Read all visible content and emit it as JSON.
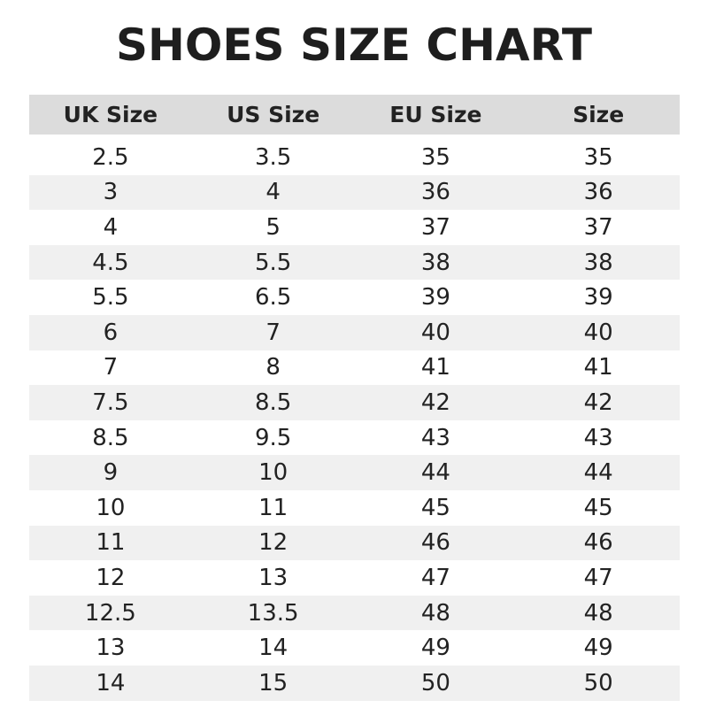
{
  "title": "SHOES SIZE CHART",
  "headers": [
    "UK Size",
    "US Size",
    "EU Size",
    "Size"
  ],
  "rows": [
    [
      "2.5",
      "3.5",
      "35",
      "35"
    ],
    [
      "3",
      "4",
      "36",
      "36"
    ],
    [
      "4",
      "5",
      "37",
      "37"
    ],
    [
      "4.5",
      "5.5",
      "38",
      "38"
    ],
    [
      "5.5",
      "6.5",
      "39",
      "39"
    ],
    [
      "6",
      "7",
      "40",
      "40"
    ],
    [
      "7",
      "8",
      "41",
      "41"
    ],
    [
      "7.5",
      "8.5",
      "42",
      "42"
    ],
    [
      "8.5",
      "9.5",
      "43",
      "43"
    ],
    [
      "9",
      "10",
      "44",
      "44"
    ],
    [
      "10",
      "11",
      "45",
      "45"
    ],
    [
      "11",
      "12",
      "46",
      "46"
    ],
    [
      "12",
      "13",
      "47",
      "47"
    ],
    [
      "12.5",
      "13.5",
      "48",
      "48"
    ],
    [
      "13",
      "14",
      "49",
      "49"
    ],
    [
      "14",
      "15",
      "50",
      "50"
    ]
  ]
}
